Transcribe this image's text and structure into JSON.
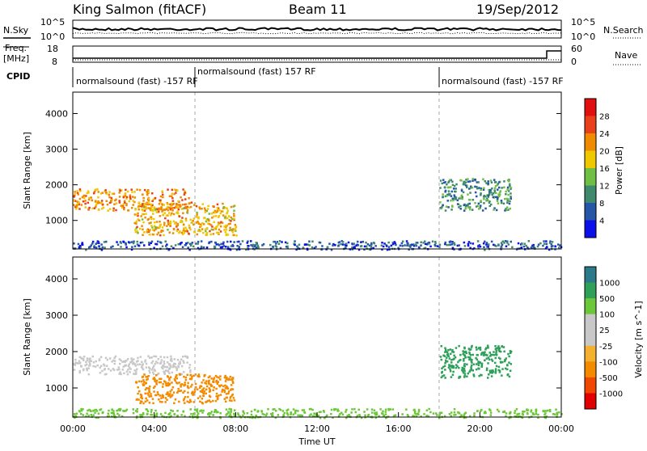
{
  "header": {
    "site": "King Salmon (fitACF)",
    "beam": "Beam 11",
    "date": "19/Sep/2012"
  },
  "strips": {
    "nsky_label": "N.Sky",
    "nsearch_label": "N.Search",
    "nsky_ticks": [
      "10^5",
      "10^0"
    ],
    "nsearch_ticks": [
      "10^5",
      "10^0"
    ],
    "freq_label": "Freq.",
    "freq_unit": "[MHz]",
    "freq_ticks": [
      "18",
      "8"
    ],
    "nave_label": "Nave",
    "nave_ticks": [
      "60",
      "0"
    ],
    "cpid_label": "CPID",
    "cpid_segments": [
      {
        "text": "normalsound (fast) -157 RF",
        "start": "00:00",
        "end": "06:00"
      },
      {
        "text": "normalsound (fast) 157 RF",
        "start": "06:00",
        "end": "18:00"
      },
      {
        "text": "normalsound (fast) -157 RF",
        "start": "18:00",
        "end": "24:00"
      }
    ]
  },
  "colors": {
    "power_scale": [
      "#0b10e8",
      "#2556a8",
      "#3f8a6c",
      "#6fbf44",
      "#f0c800",
      "#f08a00",
      "#e8401a",
      "#e01010"
    ],
    "velocity_scale": [
      "#e00000",
      "#f04800",
      "#f48a00",
      "#f4b030",
      "#c8c8c8",
      "#c8c8c8",
      "#6cc838",
      "#2ea05a",
      "#2a7a8a",
      "#1a3aa8"
    ],
    "gray_band": "#bfbfbf"
  },
  "chart_data": [
    {
      "type": "heatmap",
      "title": "",
      "ylabel": "Slant Range [km]",
      "ylim": [
        200,
        4600
      ],
      "y_ticks": [
        "1000",
        "2000",
        "3000",
        "4000"
      ],
      "x_ticks": [
        "00:00",
        "04:00",
        "08:00",
        "12:00",
        "16:00",
        "20:00",
        "00:00"
      ],
      "xlim_hours": [
        0,
        24
      ],
      "colorbar_label": "Power [dB]",
      "colorbar_ticks": [
        "4",
        "8",
        "12",
        "16",
        "20",
        "24",
        "28"
      ],
      "features": [
        {
          "name": "band-a",
          "t0": 0.0,
          "t1": 5.8,
          "r0": 1300,
          "r1": 1900,
          "level": 22
        },
        {
          "name": "band-b",
          "t0": 3.0,
          "t1": 8.0,
          "r0": 600,
          "r1": 1500,
          "level": 20
        },
        {
          "name": "patch-c",
          "t0": 18.0,
          "t1": 21.5,
          "r0": 1300,
          "r1": 2200,
          "level": 10
        },
        {
          "name": "ground",
          "t0": 0.0,
          "t1": 24.0,
          "r0": 200,
          "r1": 450,
          "level": 6
        }
      ]
    },
    {
      "type": "heatmap",
      "title": "",
      "ylabel": "Slant Range [km]",
      "xlabel": "Time UT",
      "ylim": [
        200,
        4600
      ],
      "y_ticks": [
        "1000",
        "2000",
        "3000",
        "4000"
      ],
      "x_ticks": [
        "00:00",
        "04:00",
        "08:00",
        "12:00",
        "16:00",
        "20:00",
        "00:00"
      ],
      "xlim_hours": [
        0,
        24
      ],
      "colorbar_label": "Velocity [m s^-1]",
      "colorbar_ticks": [
        "1000",
        "500",
        "100",
        "25",
        "-25",
        "-100",
        "-500",
        "-1000"
      ],
      "features": [
        {
          "name": "ground-gray",
          "t0": 0.0,
          "t1": 5.8,
          "r0": 1400,
          "r1": 1900,
          "level": 0
        },
        {
          "name": "orange-blob",
          "t0": 3.0,
          "t1": 8.0,
          "r0": 600,
          "r1": 1400,
          "level": -300
        },
        {
          "name": "patch-d",
          "t0": 18.0,
          "t1": 21.5,
          "r0": 1300,
          "r1": 2200,
          "level": 200
        },
        {
          "name": "ground-low",
          "t0": 0.0,
          "t1": 24.0,
          "r0": 200,
          "r1": 450,
          "level": 50
        }
      ]
    }
  ]
}
